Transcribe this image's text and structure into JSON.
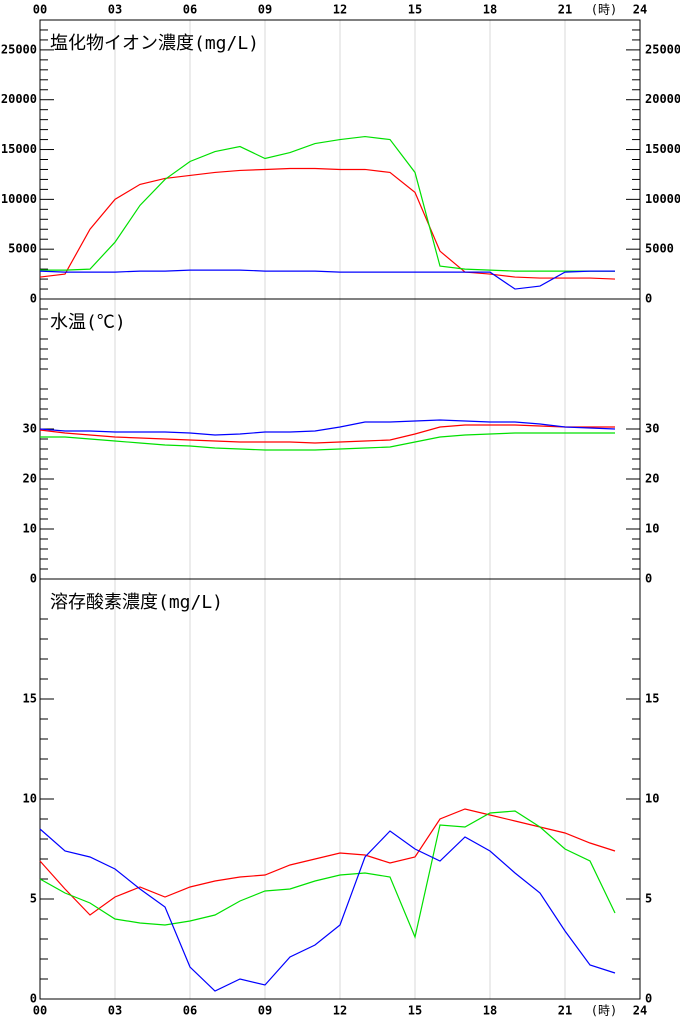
{
  "chart_data": [
    {
      "type": "line",
      "title": "塩化物イオン濃度(mg/L)",
      "xlabel": "(時)",
      "x": [
        0,
        1,
        2,
        3,
        4,
        5,
        6,
        7,
        8,
        9,
        10,
        11,
        12,
        13,
        14,
        15,
        16,
        17,
        18,
        19,
        20,
        21,
        22,
        23
      ],
      "xlim": [
        0,
        24
      ],
      "xticks": [
        {
          "value": 0,
          "label": "00"
        },
        {
          "value": 3,
          "label": "03"
        },
        {
          "value": 6,
          "label": "06"
        },
        {
          "value": 9,
          "label": "09"
        },
        {
          "value": 12,
          "label": "12"
        },
        {
          "value": 15,
          "label": "15"
        },
        {
          "value": 18,
          "label": "18"
        },
        {
          "value": 21,
          "label": "21"
        },
        {
          "value": 24,
          "label": "24"
        }
      ],
      "ylim": [
        0,
        28000
      ],
      "yticks": [
        0,
        5000,
        10000,
        15000,
        20000,
        25000
      ],
      "grid": true,
      "series": [
        {
          "color": "#ff0000",
          "values": [
            2200,
            2500,
            7000,
            10000,
            11500,
            12100,
            12400,
            12700,
            12900,
            13000,
            13100,
            13100,
            13000,
            13000,
            12700,
            10700,
            4800,
            2700,
            2500,
            2200,
            2100,
            2100,
            2100,
            2000
          ]
        },
        {
          "color": "#00e000",
          "values": [
            2900,
            2900,
            3000,
            5700,
            9400,
            12000,
            13800,
            14800,
            15300,
            14100,
            14700,
            15600,
            16000,
            16300,
            16000,
            12700,
            3300,
            3000,
            2900,
            2800,
            2800,
            2800,
            2800,
            2800
          ]
        },
        {
          "color": "#0000ff",
          "values": [
            2800,
            2700,
            2700,
            2700,
            2800,
            2800,
            2900,
            2900,
            2900,
            2800,
            2800,
            2800,
            2700,
            2700,
            2700,
            2700,
            2700,
            2700,
            2700,
            1000,
            1300,
            2700,
            2800,
            2800
          ]
        }
      ]
    },
    {
      "type": "line",
      "title": "水温(℃)",
      "x": [
        0,
        1,
        2,
        3,
        4,
        5,
        6,
        7,
        8,
        9,
        10,
        11,
        12,
        13,
        14,
        15,
        16,
        17,
        18,
        19,
        20,
        21,
        22,
        23
      ],
      "xlim": [
        0,
        24
      ],
      "xticks": [
        {
          "value": 0,
          "label": "00"
        },
        {
          "value": 3,
          "label": "03"
        },
        {
          "value": 6,
          "label": "06"
        },
        {
          "value": 9,
          "label": "09"
        },
        {
          "value": 12,
          "label": "12"
        },
        {
          "value": 15,
          "label": "15"
        },
        {
          "value": 18,
          "label": "18"
        },
        {
          "value": 21,
          "label": "21"
        },
        {
          "value": 24,
          "label": "24"
        }
      ],
      "ylim": [
        0,
        56
      ],
      "yticks": [
        0,
        10,
        20,
        30
      ],
      "grid": true,
      "series": [
        {
          "color": "#ff0000",
          "values": [
            29.8,
            29.2,
            28.8,
            28.4,
            28.2,
            28,
            27.8,
            27.6,
            27.4,
            27.4,
            27.4,
            27.2,
            27.4,
            27.6,
            27.8,
            29,
            30.4,
            30.8,
            30.8,
            30.8,
            30.6,
            30.4,
            30.4,
            30.4
          ]
        },
        {
          "color": "#00e000",
          "values": [
            28.4,
            28.4,
            28,
            27.6,
            27.2,
            26.8,
            26.6,
            26.2,
            26,
            25.8,
            25.8,
            25.8,
            26,
            26.2,
            26.4,
            27.4,
            28.4,
            28.8,
            29,
            29.2,
            29.2,
            29.2,
            29.2,
            29.2
          ]
        },
        {
          "color": "#0000ff",
          "values": [
            30,
            29.6,
            29.6,
            29.4,
            29.4,
            29.4,
            29.2,
            28.8,
            29,
            29.4,
            29.4,
            29.6,
            30.4,
            31.4,
            31.4,
            31.6,
            31.8,
            31.6,
            31.4,
            31.4,
            31,
            30.4,
            30.2,
            30
          ]
        }
      ]
    },
    {
      "type": "line",
      "title": "溶存酸素濃度(mg/L)",
      "xlabel": "(時)",
      "x": [
        0,
        1,
        2,
        3,
        4,
        5,
        6,
        7,
        8,
        9,
        10,
        11,
        12,
        13,
        14,
        15,
        16,
        17,
        18,
        19,
        20,
        21,
        22,
        23
      ],
      "xlim": [
        0,
        24
      ],
      "xticks": [
        {
          "value": 0,
          "label": "00"
        },
        {
          "value": 3,
          "label": "03"
        },
        {
          "value": 6,
          "label": "06"
        },
        {
          "value": 9,
          "label": "09"
        },
        {
          "value": 12,
          "label": "12"
        },
        {
          "value": 15,
          "label": "15"
        },
        {
          "value": 18,
          "label": "18"
        },
        {
          "value": 21,
          "label": "21"
        },
        {
          "value": 24,
          "label": "24"
        }
      ],
      "ylim": [
        0,
        21
      ],
      "yticks": [
        0,
        5,
        10,
        15
      ],
      "grid": true,
      "series": [
        {
          "color": "#ff0000",
          "values": [
            6.9,
            5.5,
            4.2,
            5.1,
            5.6,
            5.1,
            5.6,
            5.9,
            6.1,
            6.2,
            6.7,
            7.0,
            7.3,
            7.2,
            6.8,
            7.1,
            9.0,
            9.5,
            9.2,
            8.9,
            8.6,
            8.3,
            7.8,
            7.4
          ]
        },
        {
          "color": "#00e000",
          "values": [
            6.0,
            5.3,
            4.8,
            4.0,
            3.8,
            3.7,
            3.9,
            4.2,
            4.9,
            5.4,
            5.5,
            5.9,
            6.2,
            6.3,
            6.1,
            3.1,
            8.7,
            8.6,
            9.3,
            9.4,
            8.6,
            7.5,
            6.9,
            4.3
          ]
        },
        {
          "color": "#0000ff",
          "values": [
            8.5,
            7.4,
            7.1,
            6.5,
            5.5,
            4.6,
            1.6,
            0.4,
            1.0,
            0.7,
            2.1,
            2.7,
            3.7,
            7.1,
            8.4,
            7.5,
            6.9,
            8.1,
            7.4,
            6.3,
            5.3,
            3.4,
            1.7,
            1.3
          ]
        }
      ]
    }
  ]
}
